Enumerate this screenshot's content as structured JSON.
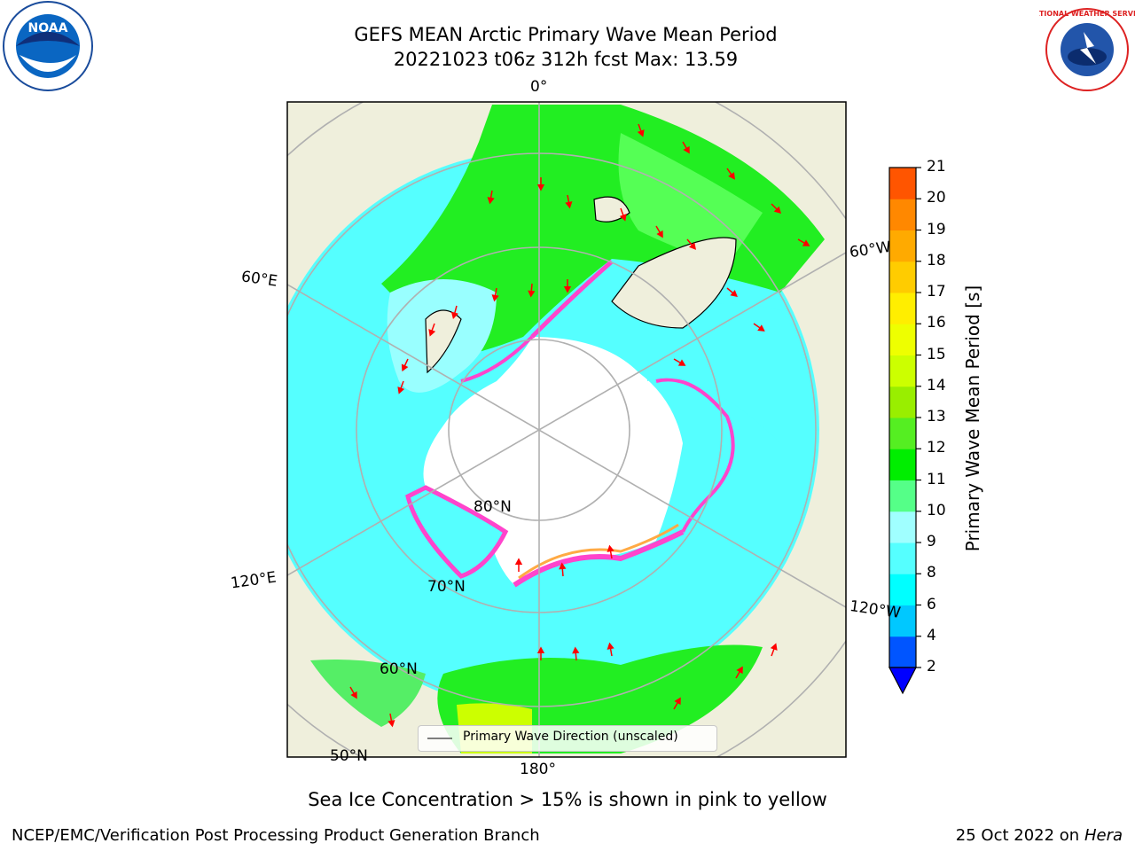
{
  "title": {
    "line1": "GEFS MEAN Arctic Primary Wave Mean Period",
    "line2": "20221023 t06z 312h fcst   Max: 13.59"
  },
  "map": {
    "projection": "north-polar-stereographic",
    "longitude_labels": {
      "lon_0": "0°",
      "lon_60e": "60°E",
      "lon_60w": "60°W",
      "lon_120e": "120°E",
      "lon_120w": "120°W",
      "lon_180": "180°"
    },
    "latitude_labels": {
      "lat_80": "80°N",
      "lat_70": "70°N",
      "lat_60": "60°N",
      "lat_50": "50°N"
    },
    "colors": {
      "land": "#efefdc",
      "ice_free_open": "#ffffff",
      "graticule": "#b0b0b0",
      "coastline": "#000000",
      "ice_edge_pink": "#ff44cc",
      "ice_edge_orange": "#ffaa44",
      "wave_arrow": "#ff0000"
    },
    "legend_label": "Primary Wave Direction (unscaled)"
  },
  "colorbar": {
    "label": "Primary Wave Mean Period [s]",
    "ticks": [
      "2",
      "4",
      "6",
      "8",
      "9",
      "10",
      "11",
      "12",
      "13",
      "14",
      "15",
      "16",
      "17",
      "18",
      "19",
      "20",
      "21"
    ],
    "colors": [
      "#0055ff",
      "#00c8ff",
      "#00ffff",
      "#55ffff",
      "#a0ffff",
      "#55ff88",
      "#00ee00",
      "#55ee22",
      "#99ee00",
      "#ccff00",
      "#eeff00",
      "#ffee00",
      "#ffcc00",
      "#ffaa00",
      "#ff8800",
      "#ff5500",
      "#ff2200",
      "#ff0000"
    ],
    "underflow_color": "#0000ff"
  },
  "subtitle": "Sea Ice Concentration > 15% is shown in pink to yellow",
  "footer": {
    "left": "NCEP/EMC/Verification Post Processing Product Generation Branch",
    "right_date": "25 Oct 2022 on ",
    "right_machine": "Hera"
  },
  "logos": {
    "noaa_text": "NOAA",
    "nws_text": "NATIONAL WEATHER SERVICE"
  }
}
